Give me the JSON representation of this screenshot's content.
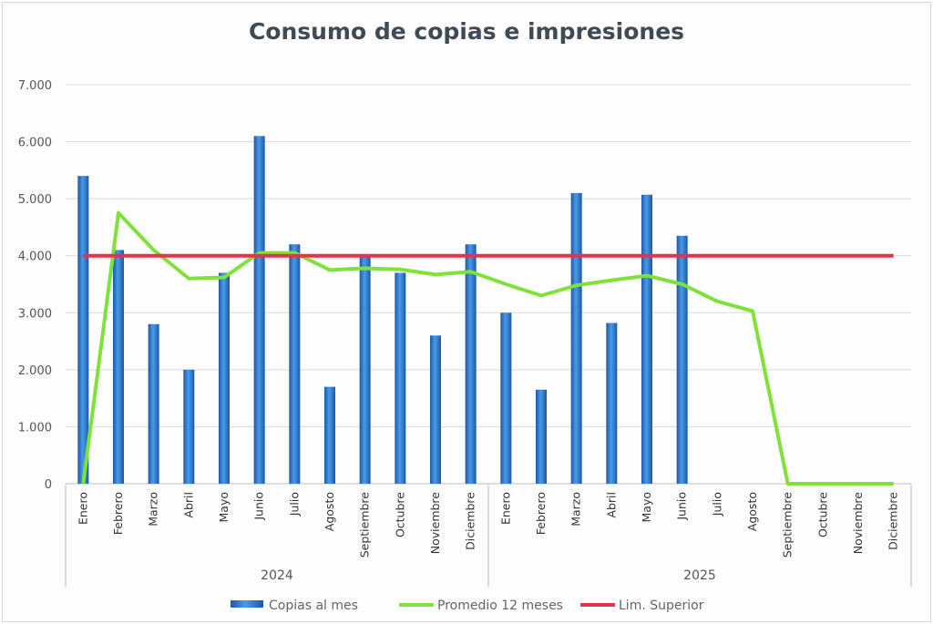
{
  "chart_data": {
    "type": "bar+line",
    "title": "Consumo de copias e impresiones",
    "categories": [
      "Enero",
      "Febrero",
      "Marzo",
      "Abril",
      "Mayo",
      "Junio",
      "Julio",
      "Agosto",
      "Septiembre",
      "Octubre",
      "Noviembre",
      "Diciembre",
      "Enero",
      "Febrero",
      "Marzo",
      "Abril",
      "Mayo",
      "Junio",
      "Julio",
      "Agosto",
      "Septiembre",
      "Octubre",
      "Noviembre",
      "Diciembre"
    ],
    "groups": [
      {
        "label": "2024",
        "count": 12
      },
      {
        "label": "2025",
        "count": 12
      }
    ],
    "ylim": [
      0,
      7000
    ],
    "yticks": [
      "0",
      "1.000",
      "2.000",
      "3.000",
      "4.000",
      "5.000",
      "6.000",
      "7.000"
    ],
    "grid": true,
    "legend_position": "bottom",
    "series": [
      {
        "name": "Copias al mes",
        "type": "bar",
        "color": "#2f78d0",
        "values": [
          5400,
          4100,
          2800,
          2000,
          3700,
          6100,
          4200,
          1700,
          4000,
          3700,
          2600,
          4200,
          3000,
          1650,
          5100,
          2820,
          5070,
          4350,
          null,
          null,
          null,
          null,
          null,
          null
        ]
      },
      {
        "name": "Promedio 12 meses",
        "type": "line",
        "color": "#7ee23a",
        "values": [
          0,
          4750,
          4100,
          3600,
          3620,
          4050,
          4050,
          3750,
          3780,
          3760,
          3670,
          3720,
          3500,
          3300,
          3480,
          3570,
          3650,
          3500,
          3200,
          3030,
          0,
          0,
          0,
          0
        ]
      },
      {
        "name": "Lim. Superior",
        "type": "line",
        "color": "#e0344f",
        "values": [
          4000,
          4000,
          4000,
          4000,
          4000,
          4000,
          4000,
          4000,
          4000,
          4000,
          4000,
          4000,
          4000,
          4000,
          4000,
          4000,
          4000,
          4000,
          4000,
          4000,
          4000,
          4000,
          4000,
          4000
        ]
      }
    ]
  }
}
